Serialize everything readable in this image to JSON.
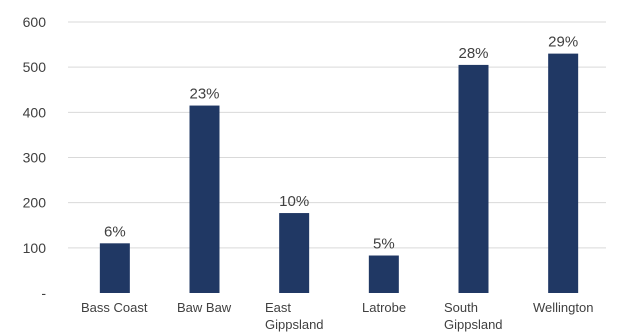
{
  "chart_data": {
    "type": "bar",
    "title": "",
    "xlabel": "",
    "ylabel": "",
    "categories": [
      [
        "Bass Coast"
      ],
      [
        "Baw Baw"
      ],
      [
        "East",
        "Gippsland"
      ],
      [
        "Latrobe"
      ],
      [
        "South",
        "Gippsland"
      ],
      [
        "Wellington"
      ]
    ],
    "values": [
      110,
      415,
      177,
      83,
      505,
      530
    ],
    "data_labels": [
      "6%",
      "23%",
      "10%",
      "5%",
      "28%",
      "29%"
    ],
    "ylim": [
      0,
      600
    ],
    "y_ticks": [
      0,
      100,
      200,
      300,
      400,
      500,
      600
    ],
    "y_tick_labels": [
      "-",
      "100",
      "200",
      "300",
      "400",
      "500",
      "600"
    ],
    "grid": true,
    "legend": "none",
    "bar_color": "#203864",
    "grid_color": "#d9d9d9",
    "text_color": "#404040"
  }
}
